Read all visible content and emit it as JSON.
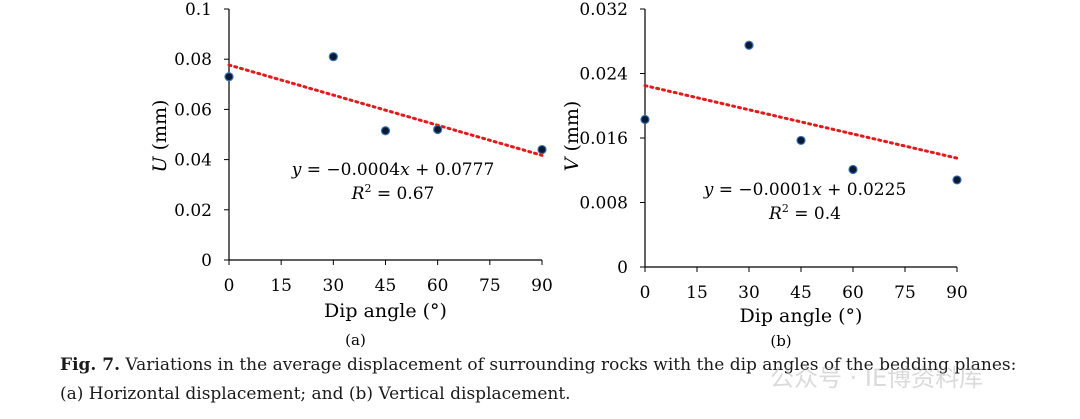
{
  "chart_data": [
    {
      "type": "scatter",
      "panel_label": "(a)",
      "xlabel": "Dip angle (°)",
      "ylabel_var": "U",
      "ylabel_unit": " (mm)",
      "xlim": [
        0,
        90
      ],
      "ylim": [
        0,
        0.1
      ],
      "x_ticks": [
        "0",
        "15",
        "30",
        "45",
        "60",
        "75",
        "90"
      ],
      "y_ticks": [
        "0",
        "0.02",
        "0.04",
        "0.06",
        "0.08",
        "0.1"
      ],
      "points": [
        {
          "x": 0,
          "y": 0.073
        },
        {
          "x": 30,
          "y": 0.081
        },
        {
          "x": 45,
          "y": 0.0515
        },
        {
          "x": 60,
          "y": 0.052
        },
        {
          "x": 90,
          "y": 0.044
        }
      ],
      "trendline": {
        "slope": -0.0004,
        "intercept": 0.0777
      },
      "equation": {
        "lhs": "y",
        "rhs": " = −0.0004",
        "x": "x",
        "tail": " + 0.0777",
        "r_label": "R",
        "r_sup": "2",
        "r_value": " = 0.67"
      },
      "grid": false,
      "legend": "none"
    },
    {
      "type": "scatter",
      "panel_label": "(b)",
      "xlabel": "Dip angle (°)",
      "ylabel_var": "V",
      "ylabel_unit": " (mm)",
      "xlim": [
        0,
        90
      ],
      "ylim": [
        0,
        0.032
      ],
      "x_ticks": [
        "0",
        "15",
        "30",
        "45",
        "60",
        "75",
        "90"
      ],
      "y_ticks": [
        "0",
        "0.008",
        "0.016",
        "0.024",
        "0.032"
      ],
      "points": [
        {
          "x": 0,
          "y": 0.0183
        },
        {
          "x": 30,
          "y": 0.0275
        },
        {
          "x": 45,
          "y": 0.0157
        },
        {
          "x": 60,
          "y": 0.0121
        },
        {
          "x": 90,
          "y": 0.0108
        }
      ],
      "trendline": {
        "slope": -0.0001,
        "intercept": 0.0225
      },
      "equation": {
        "lhs": "y",
        "rhs": " = −0.0001",
        "x": "x",
        "tail": " + 0.0225",
        "r_label": "R",
        "r_sup": "2",
        "r_value": " = 0.4"
      },
      "grid": false,
      "legend": "none"
    }
  ],
  "caption": {
    "fig_label": "Fig. 7.",
    "line1": " Variations in the average displacement of surrounding rocks with the dip angles of the bedding planes:",
    "line2": "(a) Horizontal displacement; and (b) Vertical displacement."
  },
  "watermark": "公众号 · IE博资料库"
}
